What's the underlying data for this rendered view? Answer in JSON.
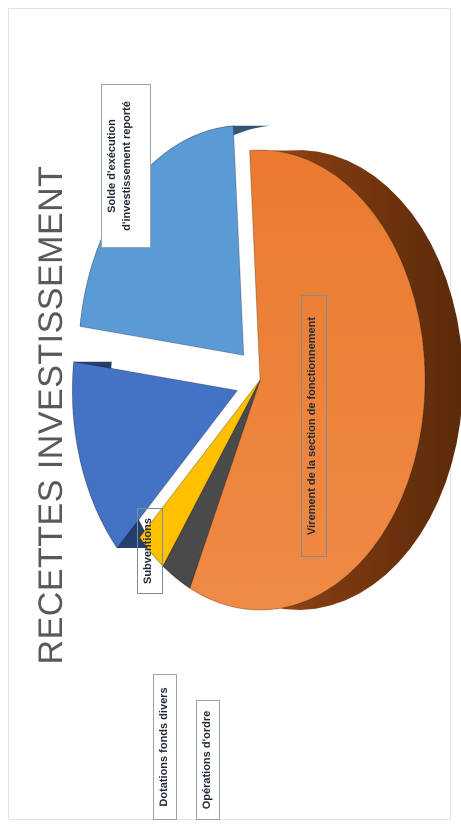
{
  "chart_data": {
    "type": "pie",
    "title": "RECETTES INVESTISSEMENT",
    "categories": [
      "Virement de la section de fonctionnement",
      "Solde d'exécution d'investissement reporté",
      "Subventions",
      "Dotations fonds divers",
      "Opérations d'ordre"
    ],
    "values": [
      58,
      22,
      14,
      3,
      3
    ],
    "colors": [
      "#ED7D31",
      "#5B9BD5",
      "#4472C4",
      "#FFC000",
      "#4A4A4A"
    ],
    "exploded": [
      "Solde d'exécution d'investissement reporté",
      "Subventions"
    ],
    "labels": {
      "virement": "Virement de la section de fonctionnement",
      "solde_line1": "Solde d'exécution",
      "solde_line2": "d'investissement reporté",
      "subventions": "Subventions",
      "dotations": "Dotations fonds divers",
      "operations": "Opérations d'ordre"
    }
  }
}
